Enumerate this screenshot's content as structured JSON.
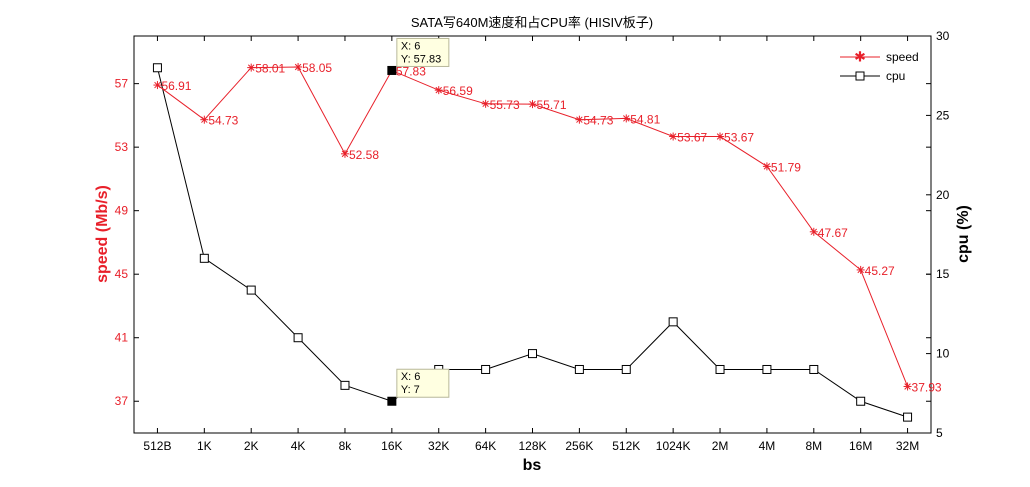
{
  "chart_data": {
    "type": "line",
    "title": "SATA写640M速度和占CPU率 (HISIV板子)",
    "xlabel": "bs",
    "ylabel": "speed (Mb/s)",
    "y2label": "cpu (%)",
    "categories": [
      "512B",
      "1K",
      "2K",
      "4K",
      "8k",
      "16K",
      "32K",
      "64K",
      "128K",
      "256K",
      "512K",
      "1024K",
      "2M",
      "4M",
      "8M",
      "16M",
      "32M"
    ],
    "ylim": [
      35,
      60
    ],
    "y2lim": [
      5,
      30
    ],
    "yticks": [
      37,
      41,
      45,
      49,
      53,
      57
    ],
    "y2ticks": [
      5,
      10,
      15,
      20,
      25,
      30
    ],
    "grid": false,
    "legend_position": "top-right",
    "series": [
      {
        "name": "speed",
        "axis": "left",
        "color": "#e8202a",
        "marker": "star",
        "values": [
          56.91,
          54.73,
          58.01,
          58.05,
          52.58,
          57.83,
          56.59,
          55.73,
          55.71,
          54.73,
          54.81,
          53.67,
          53.67,
          51.79,
          47.67,
          45.27,
          37.93
        ],
        "labels": [
          "56.91",
          "54.73",
          "58.01",
          "58.05",
          "52.58",
          "57.83",
          "56.59",
          "55.73",
          "55.71",
          "54.73",
          "54.81",
          "53.67",
          "53.67",
          "51.79",
          "47.67",
          "45.27",
          "37.93"
        ]
      },
      {
        "name": "cpu",
        "axis": "right",
        "color": "#000000",
        "marker": "square",
        "values": [
          28,
          16,
          14,
          11,
          8,
          7,
          9,
          9,
          10,
          9,
          9,
          12,
          9,
          9,
          9,
          7,
          6
        ]
      }
    ],
    "datatips": [
      {
        "series": 0,
        "index": 5,
        "line1": "X: 6",
        "line2": "Y: 57.83"
      },
      {
        "series": 1,
        "index": 5,
        "line1": "X: 6",
        "line2": "Y: 7"
      }
    ]
  }
}
